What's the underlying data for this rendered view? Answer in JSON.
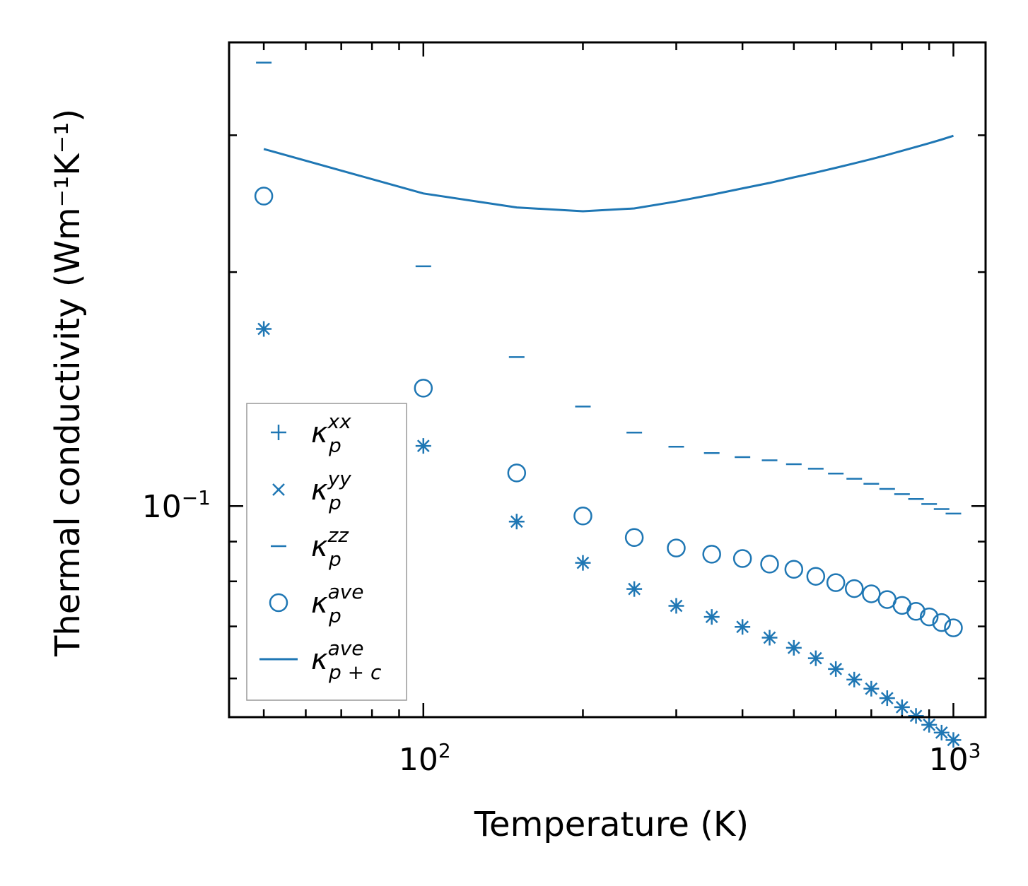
{
  "chart_data": {
    "type": "scatter",
    "title": "",
    "xlabel": "Temperature (K)",
    "ylabel": "Thermal conductivity (Wm⁻¹K⁻¹)",
    "xscale": "log",
    "yscale": "log",
    "xlim": [
      43,
      1150
    ],
    "ylim": [
      0.0535,
      0.395
    ],
    "x_ticks": [
      {
        "value": 100,
        "base": "10",
        "exp": "2"
      },
      {
        "value": 1000,
        "base": "10",
        "exp": "3"
      }
    ],
    "y_ticks": [
      {
        "value": 0.1,
        "base": "10",
        "exp": "−1"
      }
    ],
    "x": [
      50,
      100,
      150,
      200,
      250,
      300,
      350,
      400,
      450,
      500,
      550,
      600,
      650,
      700,
      750,
      800,
      850,
      900,
      950,
      1000
    ],
    "series": [
      {
        "name": "κ_p^xx",
        "legend_base": "κ",
        "legend_sub": "p",
        "legend_sup": "xx",
        "marker": "plus",
        "values": [
          0.169,
          0.1195,
          0.0955,
          0.0845,
          0.0782,
          0.0744,
          0.072,
          0.0699,
          0.0677,
          0.0657,
          0.0637,
          0.0617,
          0.0598,
          0.0582,
          0.0566,
          0.0551,
          0.0537,
          0.0523,
          0.0511,
          0.05
        ]
      },
      {
        "name": "κ_p^yy",
        "legend_base": "κ",
        "legend_sub": "p",
        "legend_sup": "yy",
        "marker": "x",
        "values": [
          0.169,
          0.1195,
          0.0955,
          0.0845,
          0.0782,
          0.0744,
          0.072,
          0.0699,
          0.0677,
          0.0657,
          0.0637,
          0.0617,
          0.0598,
          0.0582,
          0.0566,
          0.0551,
          0.0537,
          0.0523,
          0.0511,
          0.05
        ]
      },
      {
        "name": "κ_p^zz",
        "legend_base": "κ",
        "legend_sub": "p",
        "legend_sup": "zz",
        "marker": "hline",
        "values": [
          0.372,
          0.2035,
          0.1555,
          0.1343,
          0.1243,
          0.1192,
          0.117,
          0.1156,
          0.1145,
          0.1132,
          0.1117,
          0.1101,
          0.1084,
          0.1068,
          0.1052,
          0.1036,
          0.1021,
          0.1006,
          0.0991,
          0.0978
        ]
      },
      {
        "name": "κ_p^ave",
        "legend_base": "κ",
        "legend_sub": "p",
        "legend_sup": "ave",
        "marker": "circle",
        "values": [
          0.2505,
          0.1418,
          0.1103,
          0.0971,
          0.0911,
          0.0883,
          0.0867,
          0.0856,
          0.0842,
          0.0829,
          0.0812,
          0.0797,
          0.0783,
          0.0771,
          0.0758,
          0.0745,
          0.0732,
          0.072,
          0.0708,
          0.0697
        ]
      },
      {
        "name": "κ_p+c^ave",
        "legend_base": "κ",
        "legend_sub": "p + c",
        "legend_sup": "ave",
        "marker": "line",
        "values": [
          0.288,
          0.2525,
          0.2422,
          0.2395,
          0.2415,
          0.2465,
          0.2515,
          0.2563,
          0.2605,
          0.2648,
          0.2686,
          0.2724,
          0.276,
          0.2795,
          0.283,
          0.2865,
          0.2898,
          0.293,
          0.2962,
          0.2995
        ]
      }
    ],
    "legend_position": "lower-left",
    "color": "#1f77b4",
    "grid": false
  }
}
